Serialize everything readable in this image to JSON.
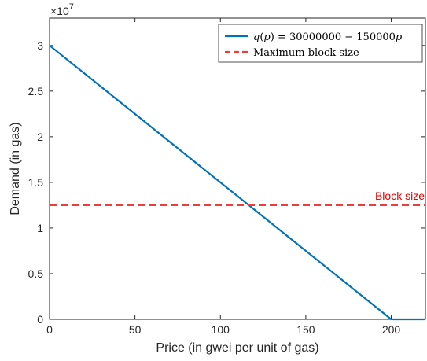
{
  "chart_data": {
    "type": "line",
    "xlabel": "Price (in gwei per unit of gas)",
    "ylabel": "Demand (in gas)",
    "xlim": [
      0,
      220
    ],
    "ylim": [
      0,
      33000000
    ],
    "xticks": [
      0,
      50,
      100,
      150,
      200
    ],
    "yticks": [
      0,
      5000000,
      10000000,
      15000000,
      20000000,
      25000000,
      30000000
    ],
    "yticklabels": [
      "0",
      "0.5",
      "1",
      "1.5",
      "2",
      "2.5",
      "3"
    ],
    "y_multiplier": {
      "base": "×10",
      "exp": "7"
    },
    "grid": false,
    "box": true,
    "legend_position": "top-right",
    "series": [
      {
        "name_parts": [
          {
            "t": "q",
            "i": true
          },
          {
            "t": "(",
            "i": false
          },
          {
            "t": "p",
            "i": true
          },
          {
            "t": ") = 30000000 − 150000",
            "i": false
          },
          {
            "t": "p",
            "i": true
          }
        ],
        "color": "#0072BD",
        "style": "solid",
        "x": [
          0,
          200,
          220
        ],
        "y": [
          30000000,
          0,
          0
        ]
      },
      {
        "name": "Maximum block size",
        "color": "#EE3B3B",
        "style": "dashed",
        "x": [
          0,
          220
        ],
        "y": [
          12500000,
          12500000
        ]
      }
    ],
    "annotations": [
      {
        "text": "Block size",
        "x": 220,
        "y": 12500000,
        "color": "#EE0000"
      }
    ]
  }
}
